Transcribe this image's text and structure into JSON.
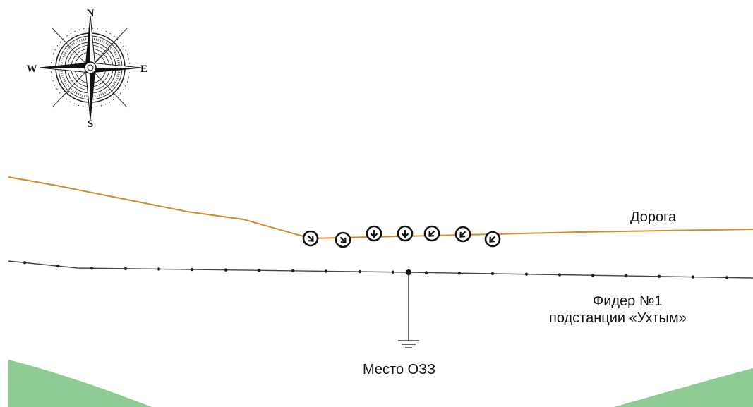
{
  "compass": {
    "north": "N",
    "south": "S",
    "east": "E",
    "west": "W"
  },
  "labels": {
    "road": "Дорога",
    "feeder_line1": "Фидер №1",
    "feeder_line2": "подстанции «Ухтым»",
    "fault_place": "Место ОЗЗ"
  },
  "colors": {
    "road": "#d28a2c",
    "feeder": "#444444",
    "ground_fill": "#8fcb94",
    "marker": "#111111"
  },
  "direction_markers": [
    {
      "icon": "arrow-down-right-icon"
    },
    {
      "icon": "arrow-down-right-icon"
    },
    {
      "icon": "arrow-down-icon"
    },
    {
      "icon": "arrow-down-icon"
    },
    {
      "icon": "arrow-down-left-icon"
    },
    {
      "icon": "arrow-down-left-icon"
    },
    {
      "icon": "arrow-down-left-icon"
    }
  ]
}
